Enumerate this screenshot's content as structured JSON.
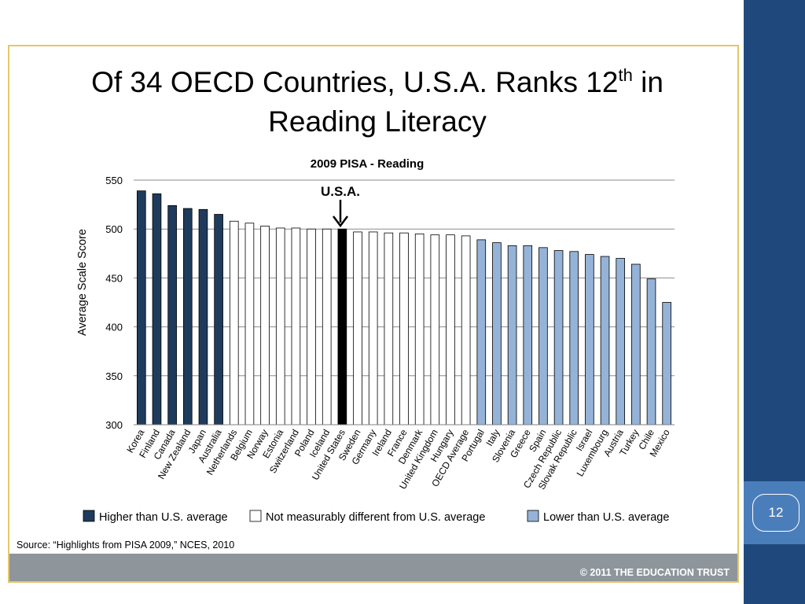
{
  "slide": {
    "title_part1": "Of 34 OECD Countries, U.S.A. Ranks 12",
    "title_sup": "th",
    "title_part2": " in",
    "title_line2": "Reading Literacy",
    "source": "Source:  “Highlights from PISA 2009,” NCES, 2010",
    "footer": "© 2011 THE EDUCATION TRUST",
    "page_number": "12"
  },
  "colors": {
    "higher": "#1f3b5c",
    "similar": "#ffffff",
    "usa": "#000000",
    "lower": "#95b3d7",
    "sidebar": "#1f497d",
    "frame": "#e3c76b"
  },
  "chart_data": {
    "type": "bar",
    "title": "2009 PISA - Reading",
    "ylabel": "Average Scale Score",
    "xlabel": "",
    "ylim": [
      300,
      550
    ],
    "yticks": [
      300,
      350,
      400,
      450,
      500,
      550
    ],
    "grid": true,
    "legend_position": "bottom",
    "annotation": "U.S.A.",
    "categories": [
      "Korea",
      "Finland",
      "Canada",
      "New Zealand",
      "Japan",
      "Australia",
      "Netherlands",
      "Belgium",
      "Norway",
      "Estonia",
      "Switzerland",
      "Poland",
      "Iceland",
      "United States",
      "Sweden",
      "Germany",
      "Ireland",
      "France",
      "Denmark",
      "United Kingdom",
      "Hungary",
      "OECD Average",
      "Portugal",
      "Italy",
      "Slovenia",
      "Greece",
      "Spain",
      "Czech Republic",
      "Slovak Republic",
      "Israel",
      "Luxembourg",
      "Austria",
      "Turkey",
      "Chile",
      "Mexico"
    ],
    "values": [
      539,
      536,
      524,
      521,
      520,
      515,
      508,
      506,
      503,
      501,
      501,
      500,
      500,
      500,
      497,
      497,
      496,
      496,
      495,
      494,
      494,
      493,
      489,
      486,
      483,
      483,
      481,
      478,
      477,
      474,
      472,
      470,
      464,
      449,
      425
    ],
    "groups": [
      "higher",
      "higher",
      "higher",
      "higher",
      "higher",
      "higher",
      "similar",
      "similar",
      "similar",
      "similar",
      "similar",
      "similar",
      "similar",
      "usa",
      "similar",
      "similar",
      "similar",
      "similar",
      "similar",
      "similar",
      "similar",
      "similar",
      "lower",
      "lower",
      "lower",
      "lower",
      "lower",
      "lower",
      "lower",
      "lower",
      "lower",
      "lower",
      "lower",
      "lower",
      "lower"
    ],
    "legend": [
      {
        "key": "higher",
        "label": "Higher than U.S. average"
      },
      {
        "key": "similar",
        "label": "Not measurably different from U.S. average"
      },
      {
        "key": "lower",
        "label": "Lower than U.S. average"
      }
    ]
  }
}
